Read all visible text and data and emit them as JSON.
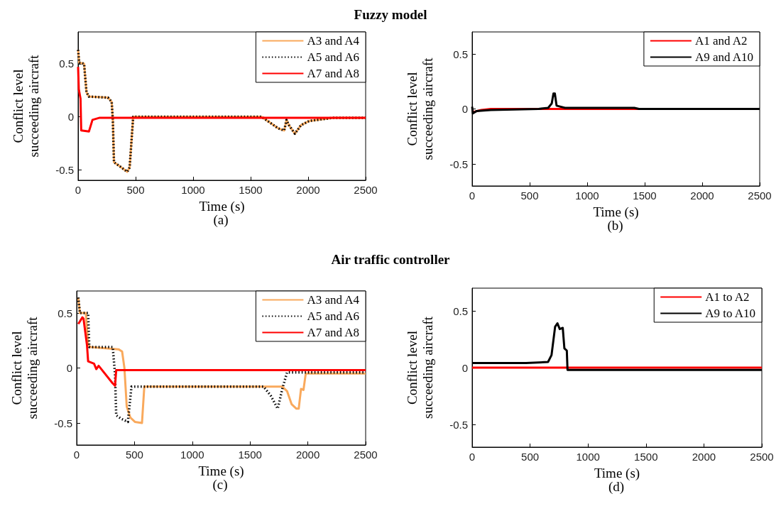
{
  "chart_data": [
    {
      "type": "line",
      "title": "Fuzzy model",
      "xlabel": "Time (s)",
      "ylabel": "Conflict level succeeding aircraft",
      "annotations": [
        "(a)"
      ],
      "xlim": [
        0,
        2500
      ],
      "xticks": [
        0,
        500,
        1000,
        1500,
        2000,
        2500
      ],
      "ylim": [
        -0.6,
        0.8
      ],
      "yticks": [
        -0.5,
        0,
        0.5
      ],
      "legend": "top right",
      "series": [
        {
          "name": "A3 and A4",
          "color": "#f9a95c",
          "line_style": "solid",
          "x": [
            0,
            10,
            52,
            73,
            94,
            260,
            292,
            302,
            312,
            365,
            427,
            448,
            479,
            1594,
            1740,
            1792,
            1812,
            1833,
            1885,
            1938,
            2010,
            2219,
            2500
          ],
          "values": [
            0.63,
            0.51,
            0.5,
            0.23,
            0.19,
            0.18,
            0.14,
            -0.03,
            -0.43,
            -0.47,
            -0.52,
            -0.48,
            0,
            0,
            -0.11,
            -0.13,
            -0.03,
            -0.08,
            -0.16,
            -0.08,
            -0.04,
            -0.01,
            -0.01
          ]
        },
        {
          "name": "A5 and A6",
          "color": "#000000",
          "line_style": "dotted",
          "x": [
            0,
            10,
            52,
            73,
            94,
            260,
            292,
            302,
            312,
            365,
            427,
            448,
            479,
            1594,
            1740,
            1792,
            1812,
            1833,
            1885,
            1938,
            2010,
            2219,
            2500
          ],
          "values": [
            0.63,
            0.51,
            0.5,
            0.23,
            0.19,
            0.18,
            0.14,
            -0.03,
            -0.43,
            -0.47,
            -0.52,
            -0.48,
            0,
            0,
            -0.11,
            -0.13,
            -0.03,
            -0.08,
            -0.16,
            -0.08,
            -0.04,
            -0.01,
            -0.01
          ]
        },
        {
          "name": "A7 and A8",
          "color": "#ff0000",
          "line_style": "solid",
          "x": [
            0,
            6,
            21,
            27,
            94,
            125,
            188,
            2500
          ],
          "values": [
            0.47,
            0.26,
            0.17,
            -0.13,
            -0.14,
            -0.03,
            -0.01,
            -0.01
          ]
        }
      ]
    },
    {
      "type": "line",
      "xlabel": "Time (s)",
      "ylabel": "Conflict level succeeding aircraft",
      "annotations": [
        "(b)"
      ],
      "xlim": [
        0,
        2500
      ],
      "xticks": [
        0,
        500,
        1000,
        1500,
        2000,
        2500
      ],
      "ylim": [
        -0.7,
        0.7
      ],
      "yticks": [
        -0.5,
        0,
        0.5
      ],
      "legend": "top right",
      "series": [
        {
          "name": "A1 and A2",
          "color": "#ff0000",
          "line_style": "solid",
          "x": [
            0,
            79,
            162,
            2500
          ],
          "values": [
            -0.03,
            -0.01,
            0,
            0
          ]
        },
        {
          "name": "A9 and A10",
          "color": "#000000",
          "line_style": "solid",
          "x": [
            0,
            6,
            37,
            162,
            578,
            661,
            692,
            707,
            719,
            734,
            807,
            1410,
            1451,
            2500
          ],
          "values": [
            0.02,
            -0.04,
            -0.02,
            -0.01,
            0,
            0.01,
            0.05,
            0.14,
            0.14,
            0.03,
            0.01,
            0.01,
            0,
            0
          ]
        }
      ]
    },
    {
      "type": "line",
      "title": "Air traffic controller",
      "xlabel": "Time (s)",
      "ylabel": "Conflict level succeeding aircraft",
      "annotations": [
        "(c)"
      ],
      "xlim": [
        0,
        2500
      ],
      "xticks": [
        0,
        500,
        1000,
        1500,
        2000,
        2500
      ],
      "ylim": [
        -0.7,
        0.7
      ],
      "yticks": [
        -0.5,
        0,
        0.5
      ],
      "legend": "top right",
      "series": [
        {
          "name": "A3 and A4",
          "color": "#f9a95c",
          "line_style": "solid",
          "x": [
            14,
            28,
            79,
            99,
            119,
            362,
            393,
            413,
            433,
            464,
            504,
            565,
            585,
            1779,
            1820,
            1860,
            1901,
            1921,
            1941,
            1962,
            1982,
            2500
          ],
          "values": [
            0.64,
            0.5,
            0.5,
            0.21,
            0.19,
            0.17,
            0.15,
            0,
            -0.35,
            -0.45,
            -0.49,
            -0.5,
            -0.17,
            -0.17,
            -0.21,
            -0.33,
            -0.37,
            -0.37,
            -0.19,
            -0.2,
            -0.05,
            -0.05
          ]
        },
        {
          "name": "A5 and A6",
          "color": "#000000",
          "line_style": "dotted",
          "x": [
            14,
            28,
            99,
            109,
            312,
            332,
            342,
            383,
            443,
            474,
            1617,
            1678,
            1739,
            1779,
            1820,
            2500
          ],
          "values": [
            0.64,
            0.5,
            0.5,
            0.19,
            0.19,
            -0.06,
            -0.43,
            -0.46,
            -0.49,
            -0.17,
            -0.17,
            -0.25,
            -0.37,
            -0.19,
            -0.04,
            -0.04
          ]
        },
        {
          "name": "A7 and A8",
          "color": "#ff0000",
          "line_style": "solid",
          "x": [
            14,
            49,
            59,
            89,
            99,
            150,
            170,
            190,
            312,
            332,
            342,
            2500
          ],
          "values": [
            0.4,
            0.46,
            0.45,
            0.21,
            0.06,
            0.04,
            -0.01,
            0.02,
            -0.14,
            -0.16,
            -0.02,
            -0.02
          ]
        }
      ]
    },
    {
      "type": "line",
      "xlabel": "Time (s)",
      "ylabel": "Conflict level succeeding aircraft",
      "annotations": [
        "(d)"
      ],
      "xlim": [
        0,
        2500
      ],
      "xticks": [
        0,
        500,
        1000,
        1500,
        2000,
        2500
      ],
      "ylim": [
        -0.7,
        0.7
      ],
      "yticks": [
        -0.5,
        0,
        0.5
      ],
      "legend": "top right",
      "series": [
        {
          "name": "A1 to A2",
          "color": "#ff0000",
          "line_style": "solid",
          "x": [
            0,
            2500
          ],
          "values": [
            0,
            0
          ]
        },
        {
          "name": "A9 to A10",
          "color": "#000000",
          "line_style": "solid",
          "x": [
            0,
            464,
            655,
            685,
            716,
            736,
            756,
            782,
            796,
            817,
            823,
            2500
          ],
          "values": [
            0.04,
            0.04,
            0.05,
            0.11,
            0.36,
            0.39,
            0.34,
            0.35,
            0.17,
            0.15,
            -0.02,
            -0.02
          ]
        }
      ]
    }
  ]
}
